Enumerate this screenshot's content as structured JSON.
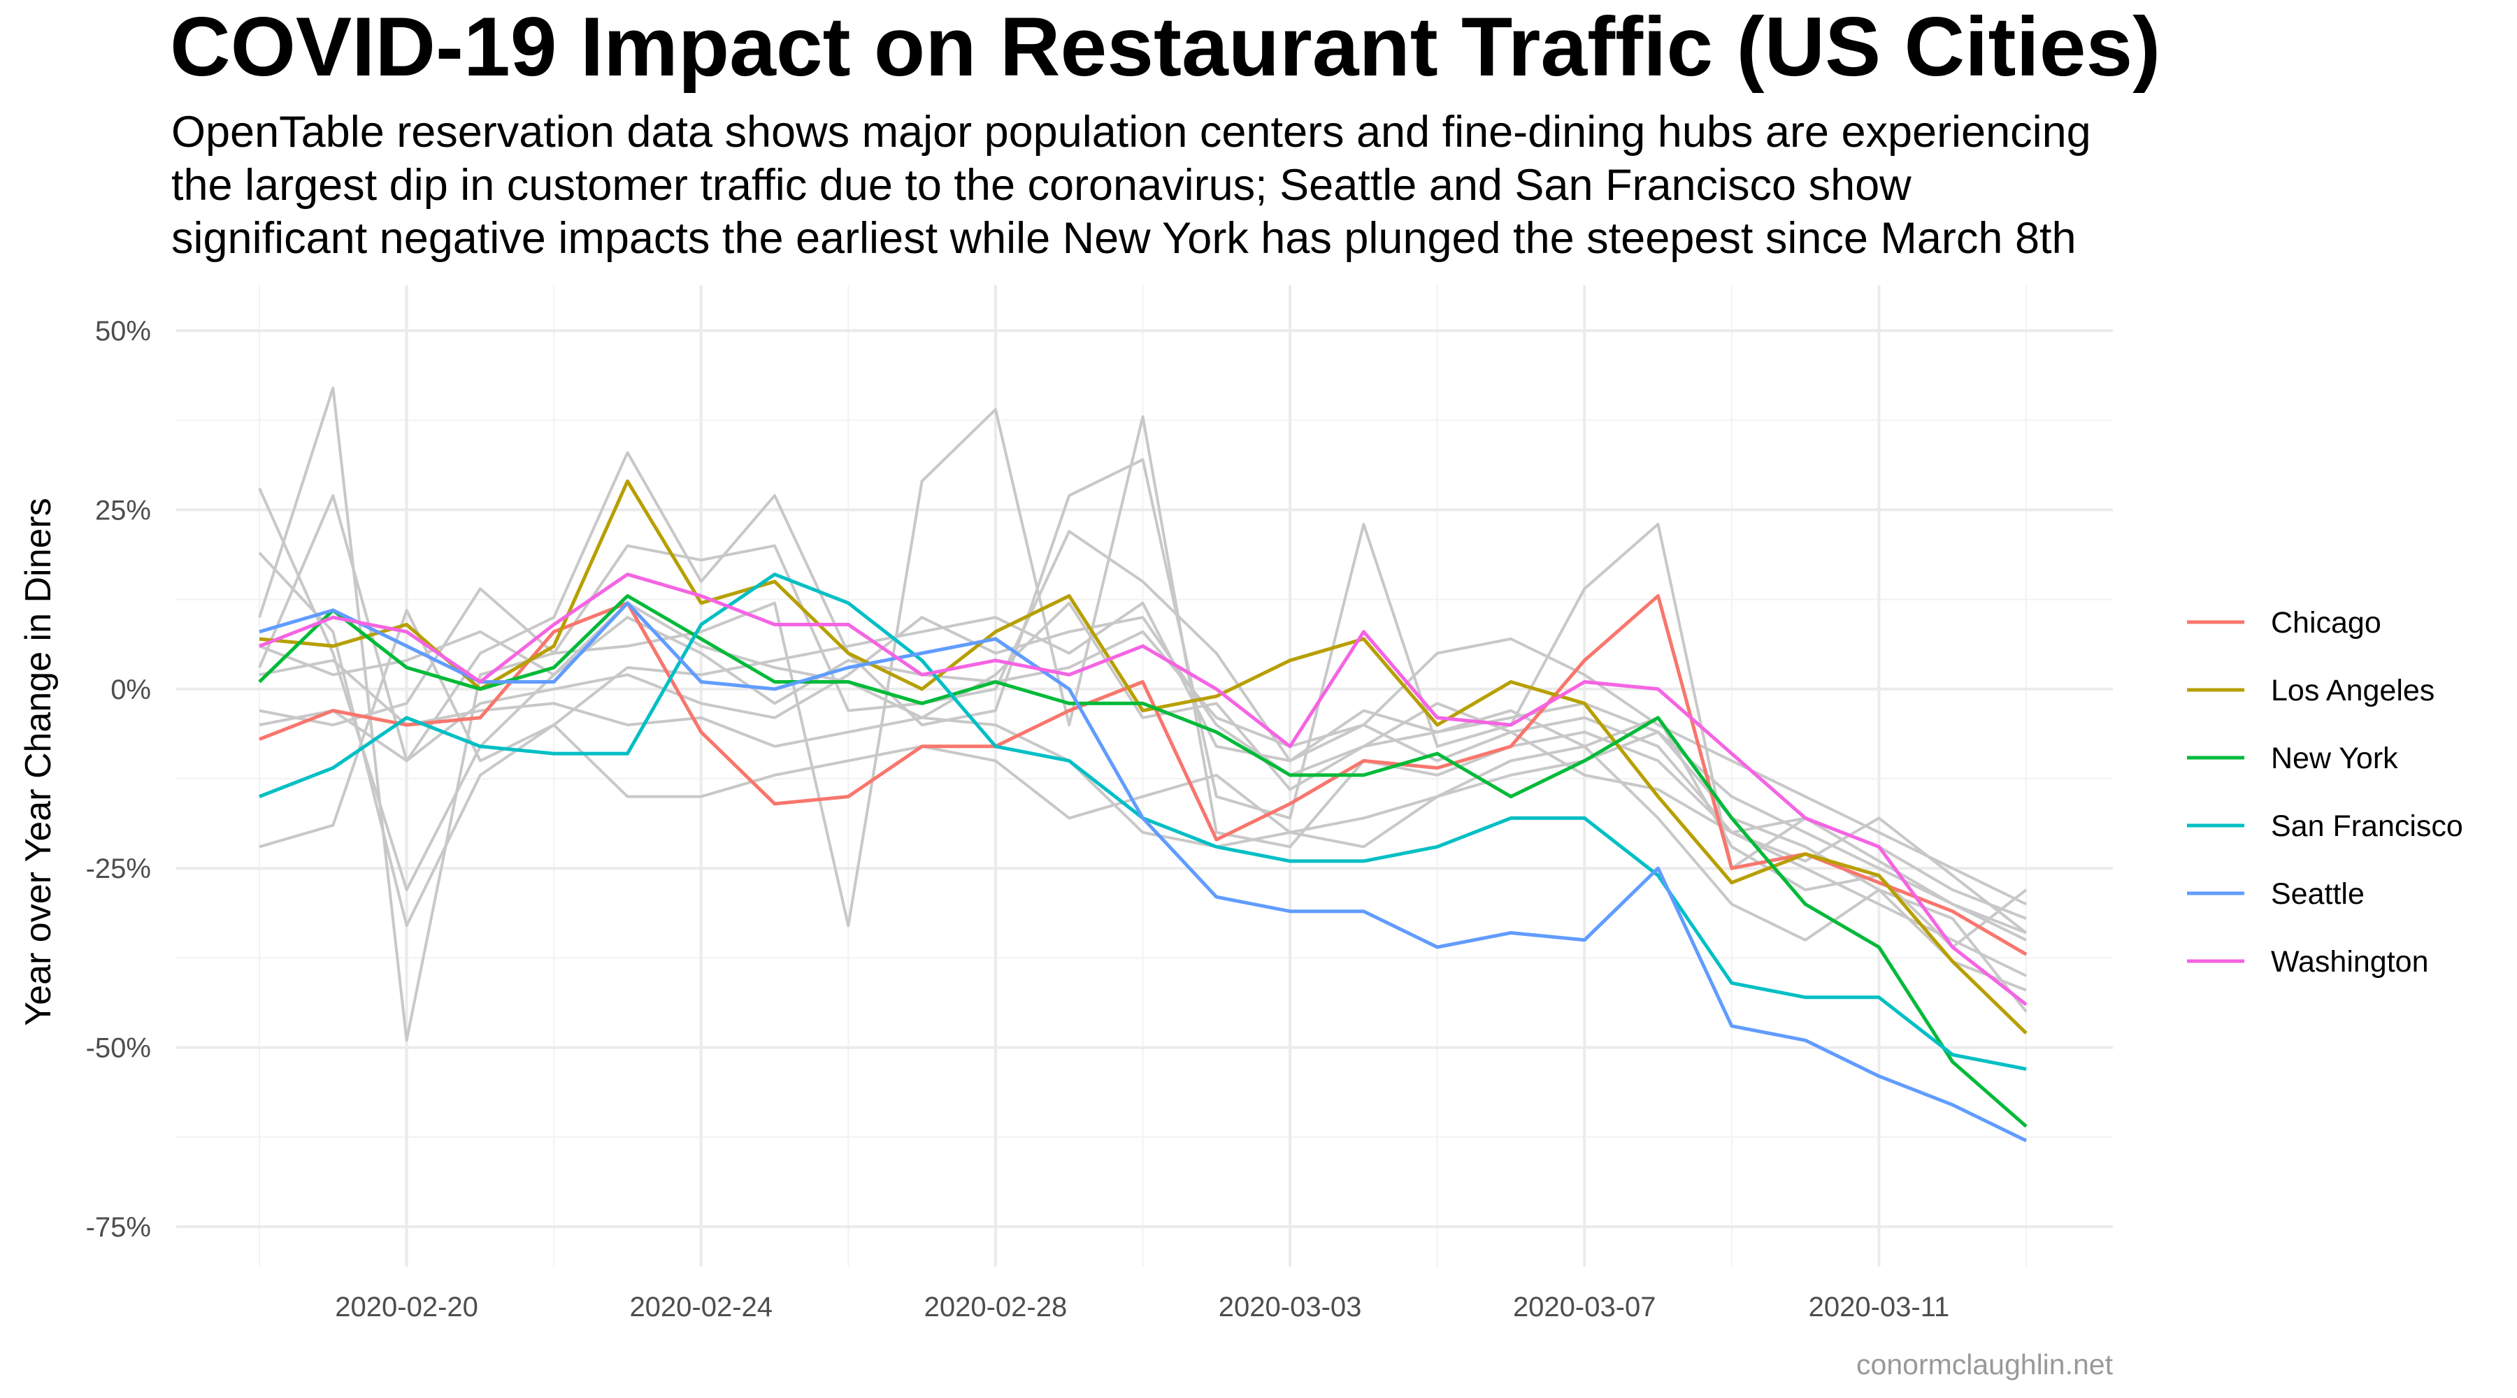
{
  "chart_data": {
    "type": "line",
    "title": "COVID-19 Impact on Restaurant Traffic (US Cities)",
    "subtitle": [
      "OpenTable reservation data shows major population centers and fine-dining hubs are experiencing",
      "the largest dip in customer traffic due to the coronavirus; Seattle and San Francisco show",
      "significant negative impacts the earliest while New York has plunged the steepest since March 8th"
    ],
    "xlabel": "",
    "ylabel": "Year over Year Change in Diners",
    "caption": "conormclaughlin.net",
    "ylim": [
      -75,
      52
    ],
    "y_ticks": [
      {
        "value": 50,
        "label": "50%"
      },
      {
        "value": 25,
        "label": "25%"
      },
      {
        "value": 0,
        "label": "0%"
      },
      {
        "value": -25,
        "label": "-25%"
      },
      {
        "value": -50,
        "label": "-50%"
      },
      {
        "value": -75,
        "label": "-75%"
      }
    ],
    "x": [
      "2020-02-18",
      "2020-02-19",
      "2020-02-20",
      "2020-02-21",
      "2020-02-22",
      "2020-02-23",
      "2020-02-24",
      "2020-02-25",
      "2020-02-26",
      "2020-02-27",
      "2020-02-28",
      "2020-02-29",
      "2020-03-01",
      "2020-03-02",
      "2020-03-03",
      "2020-03-04",
      "2020-03-05",
      "2020-03-06",
      "2020-03-07",
      "2020-03-08",
      "2020-03-09",
      "2020-03-10",
      "2020-03-11",
      "2020-03-12",
      "2020-03-13"
    ],
    "x_ticks": [
      {
        "index": 2,
        "label": "2020-02-20"
      },
      {
        "index": 6,
        "label": "2020-02-24"
      },
      {
        "index": 10,
        "label": "2020-02-28"
      },
      {
        "index": 14,
        "label": "2020-03-03"
      },
      {
        "index": 18,
        "label": "2020-03-07"
      },
      {
        "index": 22,
        "label": "2020-03-11"
      }
    ],
    "legend_position": "right",
    "series": [
      {
        "name": "Chicago",
        "color": "#F8766D",
        "values": [
          -7,
          -3,
          -5,
          -4,
          8,
          12,
          -6,
          -16,
          -15,
          -8,
          -8,
          -3,
          1,
          -21,
          -16,
          -10,
          -11,
          -8,
          4,
          13,
          -25,
          -23,
          -27,
          -31,
          -37
        ]
      },
      {
        "name": "Los Angeles",
        "color": "#B79F00",
        "values": [
          7,
          6,
          9,
          0,
          6,
          29,
          12,
          15,
          5,
          0,
          8,
          13,
          -3,
          -1,
          4,
          7,
          -5,
          1,
          -2,
          -15,
          -27,
          -23,
          -26,
          -38,
          -48
        ]
      },
      {
        "name": "New York",
        "color": "#00BA38",
        "values": [
          1,
          11,
          3,
          0,
          3,
          13,
          7,
          1,
          1,
          -2,
          1,
          -2,
          -2,
          -6,
          -12,
          -12,
          -9,
          -15,
          -10,
          -4,
          -18,
          -30,
          -36,
          -52,
          -61
        ]
      },
      {
        "name": "San Francisco",
        "color": "#00BFC4",
        "values": [
          -15,
          -11,
          -4,
          -8,
          -9,
          -9,
          9,
          16,
          12,
          4,
          -8,
          -10,
          -18,
          -22,
          -24,
          -24,
          -22,
          -18,
          -18,
          -26,
          -41,
          -43,
          -43,
          -51,
          -53
        ]
      },
      {
        "name": "Seattle",
        "color": "#619CFF",
        "values": [
          8,
          11,
          6,
          1,
          1,
          12,
          1,
          0,
          3,
          5,
          7,
          0,
          -18,
          -29,
          -31,
          -31,
          -36,
          -34,
          -35,
          -25,
          -47,
          -49,
          -54,
          -58,
          -63
        ]
      },
      {
        "name": "Washington",
        "color": "#F564E3",
        "values": [
          6,
          10,
          8,
          1,
          9,
          16,
          13,
          9,
          9,
          2,
          4,
          2,
          6,
          0,
          -8,
          8,
          -4,
          -5,
          1,
          0,
          -9,
          -18,
          -22,
          -36,
          -44
        ]
      }
    ],
    "background_series": [
      [
        28,
        5,
        -28,
        -8,
        2,
        10,
        5,
        -2,
        4,
        2,
        1,
        3,
        8,
        -4,
        -8,
        -5,
        -10,
        -6,
        -4,
        -8,
        -20,
        -25,
        -30,
        -35,
        -40
      ],
      [
        19,
        8,
        -33,
        -12,
        -5,
        3,
        2,
        4,
        6,
        8,
        10,
        5,
        12,
        -8,
        -10,
        -3,
        -6,
        -4,
        -2,
        -6,
        -15,
        -20,
        -25,
        -30,
        -35
      ],
      [
        -22,
        -19,
        11,
        -10,
        -5,
        -15,
        -15,
        -12,
        -10,
        -8,
        -10,
        -18,
        -15,
        -12,
        -20,
        -18,
        -15,
        -10,
        -8,
        -18,
        -30,
        -35,
        -28,
        -38,
        -42
      ],
      [
        10,
        42,
        -49,
        2,
        5,
        6,
        8,
        12,
        -33,
        29,
        39,
        -5,
        38,
        -20,
        -22,
        -10,
        -12,
        -8,
        -6,
        -10,
        -20,
        -18,
        -22,
        -28,
        -32
      ],
      [
        3,
        27,
        -10,
        5,
        10,
        33,
        15,
        27,
        5,
        -5,
        -3,
        27,
        32,
        -15,
        -18,
        23,
        -8,
        -5,
        14,
        23,
        -25,
        -18,
        -24,
        -30,
        -34
      ],
      [
        -3,
        -5,
        -2,
        14,
        5,
        20,
        18,
        20,
        -3,
        -2,
        0,
        22,
        15,
        5,
        -10,
        -5,
        5,
        7,
        2,
        -5,
        -10,
        -15,
        -20,
        -25,
        -30
      ],
      [
        2,
        4,
        -5,
        -3,
        -2,
        -5,
        -4,
        -8,
        -6,
        -4,
        -5,
        -10,
        -20,
        -22,
        -20,
        -22,
        -15,
        -12,
        -10,
        -6,
        -18,
        -22,
        -28,
        -32,
        -45
      ],
      [
        -5,
        -3,
        -10,
        -2,
        0,
        2,
        -2,
        -4,
        2,
        10,
        5,
        8,
        10,
        -5,
        -12,
        -8,
        -6,
        -3,
        -8,
        -4,
        -22,
        -28,
        -26,
        -36,
        -28
      ],
      [
        6,
        2,
        4,
        8,
        2,
        12,
        6,
        3,
        1,
        -4,
        2,
        12,
        -4,
        -2,
        -14,
        -8,
        -2,
        -6,
        -12,
        -14,
        -20,
        -24,
        -18,
        -26,
        -34
      ]
    ]
  }
}
